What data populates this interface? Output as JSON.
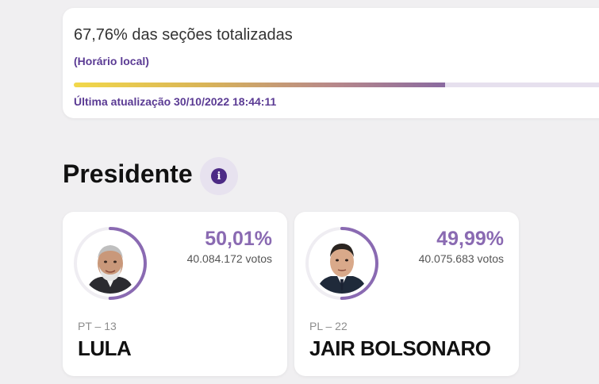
{
  "status": {
    "title": "67,76% das seções totalizadas",
    "timezone_note": "(Horário local)",
    "progress_fraction": 0.6776,
    "last_update": "Última atualização 30/10/2022 18:44:11"
  },
  "section": {
    "title": "Presidente",
    "info_icon": "info-icon"
  },
  "candidates": [
    {
      "party": "PT – 13",
      "name": "LULA",
      "percent": "50,01%",
      "votes": "40.084.172 votos",
      "ring_fraction": 0.5001
    },
    {
      "party": "PL – 22",
      "name": "JAIR BOLSONARO",
      "percent": "49,99%",
      "votes": "40.075.683 votos",
      "ring_fraction": 0.4999
    }
  ],
  "colors": {
    "accent_purple": "#8a6ab2",
    "dark_purple": "#5b3b94",
    "progress_start": "#f2d84a",
    "progress_end": "#8a6aa0"
  }
}
